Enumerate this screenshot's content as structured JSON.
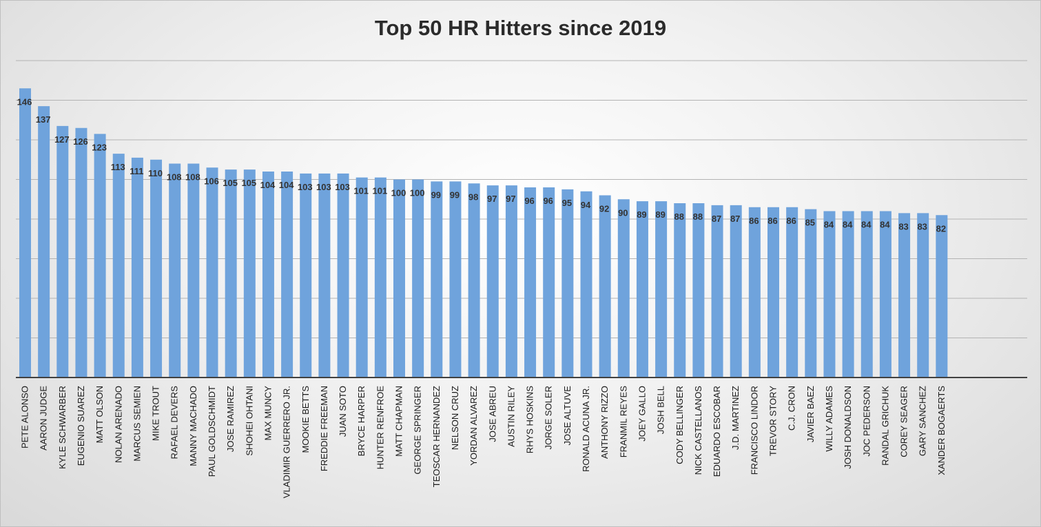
{
  "chart_data": {
    "type": "bar",
    "title": "Top 50 HR Hitters since 2019",
    "xlabel": "",
    "ylabel": "",
    "ylim": [
      0,
      160
    ],
    "grid": true,
    "legend": "none",
    "bar_color": "#6fa3dc",
    "categories": [
      "PETE ALONSO",
      "AARON JUDGE",
      "KYLE SCHWARBER",
      "EUGENIO SUAREZ",
      "MATT OLSON",
      "NOLAN ARENADO",
      "MARCUS SEMIEN",
      "MIKE TROUT",
      "RAFAEL DEVERS",
      "MANNY MACHADO",
      "PAUL GOLDSCHMIDT",
      "JOSE RAMIREZ",
      "SHOHEI OHTANI",
      "MAX MUNCY",
      "VLADIMIR GUERRERO JR.",
      "MOOKIE BETTS",
      "FREDDIE FREEMAN",
      "JUAN SOTO",
      "BRYCE HARPER",
      "HUNTER RENFROE",
      "MATT CHAPMAN",
      "GEORGE SPRINGER",
      "TEOSCAR HERNANDEZ",
      "NELSON CRUZ",
      "YORDAN ALVAREZ",
      "JOSE ABREU",
      "AUSTIN RILEY",
      "RHYS HOSKINS",
      "JORGE SOLER",
      "JOSE ALTUVE",
      "RONALD ACUNA JR.",
      "ANTHONY RIZZO",
      "FRANMIL REYES",
      "JOEY GALLO",
      "JOSH BELL",
      "CODY BELLINGER",
      "NICK CASTELLANOS",
      "EDUARDO ESCOBAR",
      "J.D. MARTINEZ",
      "FRANCISCO LINDOR",
      "TREVOR STORY",
      "C.J. CRON",
      "JAVIER BAEZ",
      "WILLY ADAMES",
      "JOSH DONALDSON",
      "JOC PEDERSON",
      "RANDAL GRICHUK",
      "COREY SEAGER",
      "GARY SANCHEZ",
      "XANDER BOGAERTS"
    ],
    "values": [
      146,
      137,
      127,
      126,
      123,
      113,
      111,
      110,
      108,
      108,
      106,
      105,
      105,
      104,
      104,
      103,
      103,
      103,
      101,
      101,
      100,
      100,
      99,
      99,
      98,
      97,
      97,
      96,
      96,
      95,
      94,
      92,
      90,
      89,
      89,
      88,
      88,
      87,
      87,
      86,
      86,
      86,
      85,
      84,
      84,
      84,
      84,
      83,
      83,
      82
    ]
  }
}
